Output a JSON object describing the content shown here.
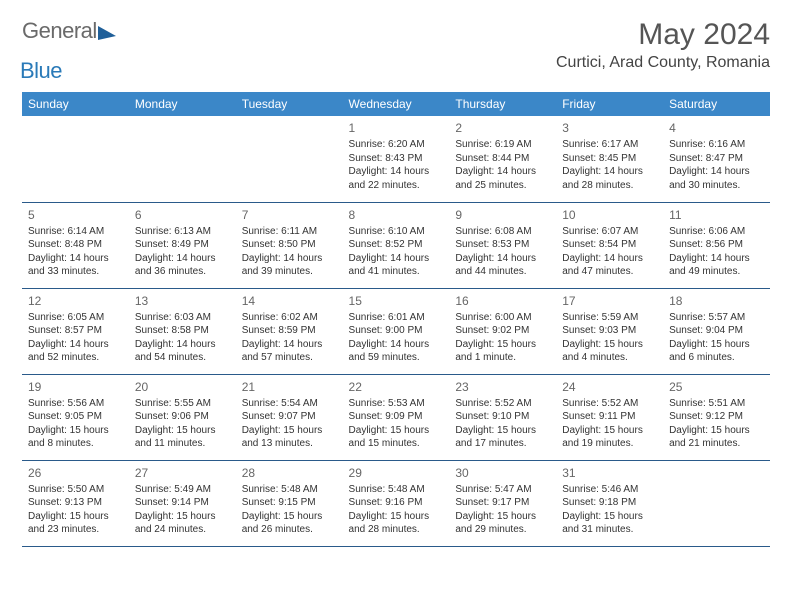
{
  "logo": {
    "general": "General",
    "blue": "Blue"
  },
  "header": {
    "month_title": "May 2024",
    "location": "Curtici, Arad County, Romania"
  },
  "colors": {
    "header_bg": "#3b87c8",
    "header_text": "#ffffff",
    "row_border": "#2a5a8a",
    "text": "#333333",
    "daynum": "#666666"
  },
  "day_headers": [
    "Sunday",
    "Monday",
    "Tuesday",
    "Wednesday",
    "Thursday",
    "Friday",
    "Saturday"
  ],
  "weeks": [
    [
      {
        "empty": true
      },
      {
        "empty": true
      },
      {
        "empty": true
      },
      {
        "n": "1",
        "sr": "Sunrise: 6:20 AM",
        "ss": "Sunset: 8:43 PM",
        "d1": "Daylight: 14 hours",
        "d2": "and 22 minutes."
      },
      {
        "n": "2",
        "sr": "Sunrise: 6:19 AM",
        "ss": "Sunset: 8:44 PM",
        "d1": "Daylight: 14 hours",
        "d2": "and 25 minutes."
      },
      {
        "n": "3",
        "sr": "Sunrise: 6:17 AM",
        "ss": "Sunset: 8:45 PM",
        "d1": "Daylight: 14 hours",
        "d2": "and 28 minutes."
      },
      {
        "n": "4",
        "sr": "Sunrise: 6:16 AM",
        "ss": "Sunset: 8:47 PM",
        "d1": "Daylight: 14 hours",
        "d2": "and 30 minutes."
      }
    ],
    [
      {
        "n": "5",
        "sr": "Sunrise: 6:14 AM",
        "ss": "Sunset: 8:48 PM",
        "d1": "Daylight: 14 hours",
        "d2": "and 33 minutes."
      },
      {
        "n": "6",
        "sr": "Sunrise: 6:13 AM",
        "ss": "Sunset: 8:49 PM",
        "d1": "Daylight: 14 hours",
        "d2": "and 36 minutes."
      },
      {
        "n": "7",
        "sr": "Sunrise: 6:11 AM",
        "ss": "Sunset: 8:50 PM",
        "d1": "Daylight: 14 hours",
        "d2": "and 39 minutes."
      },
      {
        "n": "8",
        "sr": "Sunrise: 6:10 AM",
        "ss": "Sunset: 8:52 PM",
        "d1": "Daylight: 14 hours",
        "d2": "and 41 minutes."
      },
      {
        "n": "9",
        "sr": "Sunrise: 6:08 AM",
        "ss": "Sunset: 8:53 PM",
        "d1": "Daylight: 14 hours",
        "d2": "and 44 minutes."
      },
      {
        "n": "10",
        "sr": "Sunrise: 6:07 AM",
        "ss": "Sunset: 8:54 PM",
        "d1": "Daylight: 14 hours",
        "d2": "and 47 minutes."
      },
      {
        "n": "11",
        "sr": "Sunrise: 6:06 AM",
        "ss": "Sunset: 8:56 PM",
        "d1": "Daylight: 14 hours",
        "d2": "and 49 minutes."
      }
    ],
    [
      {
        "n": "12",
        "sr": "Sunrise: 6:05 AM",
        "ss": "Sunset: 8:57 PM",
        "d1": "Daylight: 14 hours",
        "d2": "and 52 minutes."
      },
      {
        "n": "13",
        "sr": "Sunrise: 6:03 AM",
        "ss": "Sunset: 8:58 PM",
        "d1": "Daylight: 14 hours",
        "d2": "and 54 minutes."
      },
      {
        "n": "14",
        "sr": "Sunrise: 6:02 AM",
        "ss": "Sunset: 8:59 PM",
        "d1": "Daylight: 14 hours",
        "d2": "and 57 minutes."
      },
      {
        "n": "15",
        "sr": "Sunrise: 6:01 AM",
        "ss": "Sunset: 9:00 PM",
        "d1": "Daylight: 14 hours",
        "d2": "and 59 minutes."
      },
      {
        "n": "16",
        "sr": "Sunrise: 6:00 AM",
        "ss": "Sunset: 9:02 PM",
        "d1": "Daylight: 15 hours",
        "d2": "and 1 minute."
      },
      {
        "n": "17",
        "sr": "Sunrise: 5:59 AM",
        "ss": "Sunset: 9:03 PM",
        "d1": "Daylight: 15 hours",
        "d2": "and 4 minutes."
      },
      {
        "n": "18",
        "sr": "Sunrise: 5:57 AM",
        "ss": "Sunset: 9:04 PM",
        "d1": "Daylight: 15 hours",
        "d2": "and 6 minutes."
      }
    ],
    [
      {
        "n": "19",
        "sr": "Sunrise: 5:56 AM",
        "ss": "Sunset: 9:05 PM",
        "d1": "Daylight: 15 hours",
        "d2": "and 8 minutes."
      },
      {
        "n": "20",
        "sr": "Sunrise: 5:55 AM",
        "ss": "Sunset: 9:06 PM",
        "d1": "Daylight: 15 hours",
        "d2": "and 11 minutes."
      },
      {
        "n": "21",
        "sr": "Sunrise: 5:54 AM",
        "ss": "Sunset: 9:07 PM",
        "d1": "Daylight: 15 hours",
        "d2": "and 13 minutes."
      },
      {
        "n": "22",
        "sr": "Sunrise: 5:53 AM",
        "ss": "Sunset: 9:09 PM",
        "d1": "Daylight: 15 hours",
        "d2": "and 15 minutes."
      },
      {
        "n": "23",
        "sr": "Sunrise: 5:52 AM",
        "ss": "Sunset: 9:10 PM",
        "d1": "Daylight: 15 hours",
        "d2": "and 17 minutes."
      },
      {
        "n": "24",
        "sr": "Sunrise: 5:52 AM",
        "ss": "Sunset: 9:11 PM",
        "d1": "Daylight: 15 hours",
        "d2": "and 19 minutes."
      },
      {
        "n": "25",
        "sr": "Sunrise: 5:51 AM",
        "ss": "Sunset: 9:12 PM",
        "d1": "Daylight: 15 hours",
        "d2": "and 21 minutes."
      }
    ],
    [
      {
        "n": "26",
        "sr": "Sunrise: 5:50 AM",
        "ss": "Sunset: 9:13 PM",
        "d1": "Daylight: 15 hours",
        "d2": "and 23 minutes."
      },
      {
        "n": "27",
        "sr": "Sunrise: 5:49 AM",
        "ss": "Sunset: 9:14 PM",
        "d1": "Daylight: 15 hours",
        "d2": "and 24 minutes."
      },
      {
        "n": "28",
        "sr": "Sunrise: 5:48 AM",
        "ss": "Sunset: 9:15 PM",
        "d1": "Daylight: 15 hours",
        "d2": "and 26 minutes."
      },
      {
        "n": "29",
        "sr": "Sunrise: 5:48 AM",
        "ss": "Sunset: 9:16 PM",
        "d1": "Daylight: 15 hours",
        "d2": "and 28 minutes."
      },
      {
        "n": "30",
        "sr": "Sunrise: 5:47 AM",
        "ss": "Sunset: 9:17 PM",
        "d1": "Daylight: 15 hours",
        "d2": "and 29 minutes."
      },
      {
        "n": "31",
        "sr": "Sunrise: 5:46 AM",
        "ss": "Sunset: 9:18 PM",
        "d1": "Daylight: 15 hours",
        "d2": "and 31 minutes."
      },
      {
        "empty": true
      }
    ]
  ]
}
